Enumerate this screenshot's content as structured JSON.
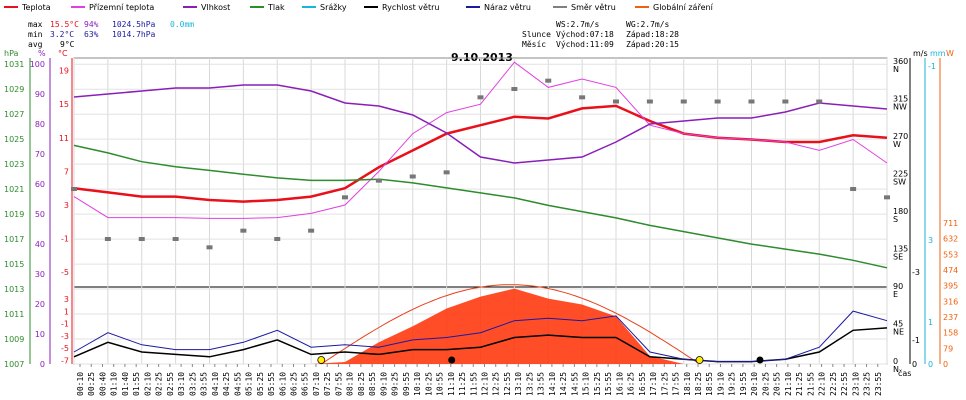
{
  "title": "9.10.2013",
  "legend": [
    {
      "label": "Teplota",
      "color": "#e8101a"
    },
    {
      "label": "Přízemní teplota",
      "color": "#e040e0"
    },
    {
      "label": "Vlhkost",
      "color": "#8a1fb8"
    },
    {
      "label": "Tlak",
      "color": "#2e8b2e"
    },
    {
      "label": "Srážky",
      "color": "#19b5d8"
    },
    {
      "label": "Rychlost větru",
      "color": "#000000"
    },
    {
      "label": "Náraz větru",
      "color": "#1a1aa0"
    },
    {
      "label": "Směr větru",
      "color": "#808080"
    },
    {
      "label": "Globální záření",
      "color": "#f06010"
    }
  ],
  "stats": {
    "max": {
      "label": "max",
      "temp": "15.5°C",
      "hum": "94%",
      "press": "1024.5hPa",
      "rain": "0.0mm"
    },
    "min": {
      "label": "min",
      "temp": "3.2°C",
      "hum": "63%",
      "press": "1014.7hPa"
    },
    "avg": {
      "label": "avg",
      "temp": "9°C"
    }
  },
  "wind_info": {
    "ws": "WS:2.7m/s",
    "wg": "WG:2.7m/s"
  },
  "sun": {
    "label": "Slunce",
    "rise": "Východ:07:18",
    "set": "Západ:18:28"
  },
  "moon": {
    "label": "Měsíc",
    "rise": "Východ:11:09",
    "set": "Západ:20:15"
  },
  "axes": {
    "hpa_unit": "hPa",
    "pct_unit": "%",
    "c_unit": "°C",
    "ms_unit": "m/s",
    "mm_unit": "mm",
    "w_unit": "W",
    "time_unit": "čas",
    "hpa_ticks": [
      "1031",
      "1029",
      "1027",
      "1025",
      "1023",
      "1021",
      "1019",
      "1017",
      "1015",
      "1013",
      "1011",
      "1009",
      "1007"
    ],
    "pct_ticks": [
      "100",
      "90",
      "80",
      "70",
      "60",
      "50",
      "40",
      "30",
      "20",
      "10",
      "0"
    ],
    "c_upper_ticks": [
      "19",
      "15",
      "11",
      "7",
      "3",
      "-1",
      "-5"
    ],
    "c_lower_ticks": [
      "3",
      "1",
      "-1",
      "-3",
      "-5",
      "-7"
    ],
    "dir_ticks": [
      {
        "deg": "360",
        "dir": "N"
      },
      {
        "deg": "315",
        "dir": "NW"
      },
      {
        "deg": "270",
        "dir": "W"
      },
      {
        "deg": "225",
        "dir": "SW"
      },
      {
        "deg": "180",
        "dir": "S"
      },
      {
        "deg": "135",
        "dir": "SE"
      },
      {
        "deg": "90",
        "dir": "E"
      },
      {
        "deg": "45",
        "dir": "NE"
      },
      {
        "deg": "0",
        "dir": "N"
      }
    ],
    "mm_ticks": [
      "-1",
      "3",
      "1",
      "0"
    ],
    "ms_ticks": [
      "-3",
      "-1",
      "0"
    ],
    "w_ticks": [
      "711",
      "632",
      "553",
      "474",
      "395",
      "316",
      "237",
      "158",
      "79",
      "0"
    ]
  },
  "chart_data": {
    "type": "line",
    "title": "9.10.2013",
    "xlabel": "čas",
    "x_ticks": [
      "00:10",
      "00:25",
      "00:40",
      "01:10",
      "01:40",
      "01:55",
      "02:10",
      "02:25",
      "02:55",
      "03:10",
      "03:25",
      "03:55",
      "04:10",
      "04:25",
      "04:55",
      "05:10",
      "05:25",
      "05:55",
      "06:10",
      "06:25",
      "06:55",
      "07:10",
      "07:25",
      "07:55",
      "08:10",
      "08:25",
      "08:55",
      "09:10",
      "09:25",
      "09:55",
      "10:10",
      "10:25",
      "10:55",
      "11:10",
      "11:25",
      "11:55",
      "12:10",
      "12:25",
      "12:55",
      "13:10",
      "13:25",
      "13:55",
      "14:10",
      "14:25",
      "14:55",
      "15:10",
      "15:25",
      "15:55",
      "16:10",
      "16:25",
      "16:55",
      "17:10",
      "17:25",
      "17:55",
      "18:10",
      "18:25",
      "18:55",
      "19:10",
      "19:25",
      "19:55",
      "20:10",
      "20:25",
      "20:55",
      "21:10",
      "21:25",
      "21:55",
      "22:10",
      "22:25",
      "22:55",
      "23:10",
      "23:25",
      "23:55"
    ],
    "hours": [
      0,
      1,
      2,
      3,
      4,
      5,
      6,
      7,
      8,
      9,
      10,
      11,
      12,
      13,
      14,
      15,
      16,
      17,
      18,
      19,
      20,
      21,
      22,
      23,
      24
    ],
    "series": [
      {
        "name": "Teplota",
        "unit": "°C",
        "values": [
          5,
          4.5,
          4,
          4,
          3.6,
          3.4,
          3.6,
          4,
          5,
          7.5,
          9.5,
          11.5,
          12.5,
          13.5,
          13.3,
          14.5,
          14.8,
          13,
          11.5,
          11,
          10.8,
          10.5,
          10.5,
          11.3,
          11
        ]
      },
      {
        "name": "Přízemní teplota",
        "unit": "°C",
        "values": [
          4,
          1.5,
          1.5,
          1.5,
          1.4,
          1.4,
          1.5,
          2,
          3,
          7,
          11.5,
          14,
          15,
          20,
          17,
          18,
          17,
          12.5,
          11.5,
          11,
          10.8,
          10.5,
          9.5,
          10.8,
          8
        ]
      },
      {
        "name": "Vlhkost",
        "unit": "%",
        "values": [
          89,
          90,
          91,
          92,
          92,
          93,
          93,
          91,
          87,
          86,
          83,
          77,
          69,
          67,
          68,
          69,
          74,
          80,
          81,
          82,
          82,
          84,
          87,
          86,
          85
        ]
      },
      {
        "name": "Tlak",
        "unit": "hPa",
        "values": [
          1024.5,
          1023.9,
          1023.2,
          1022.8,
          1022.5,
          1022.2,
          1021.9,
          1021.7,
          1021.7,
          1021.8,
          1021.5,
          1021.1,
          1020.7,
          1020.3,
          1019.7,
          1019.2,
          1018.7,
          1018.1,
          1017.6,
          1017.1,
          1016.6,
          1016.2,
          1015.8,
          1015.3,
          1014.7
        ]
      },
      {
        "name": "Rychlost větru",
        "unit": "m/s",
        "values": [
          0.3,
          0.9,
          0.5,
          0.4,
          0.3,
          0.6,
          1.0,
          0.4,
          0.5,
          0.4,
          0.6,
          0.6,
          0.7,
          1.1,
          1.2,
          1.1,
          1.1,
          0.3,
          0.2,
          0.1,
          0.1,
          0.2,
          0.5,
          1.4,
          1.5
        ]
      },
      {
        "name": "Náraz větru",
        "unit": "m/s",
        "values": [
          0.5,
          1.3,
          0.8,
          0.6,
          0.6,
          0.9,
          1.4,
          0.7,
          0.8,
          0.7,
          1.0,
          1.1,
          1.3,
          1.8,
          1.9,
          1.8,
          2.0,
          0.5,
          0.2,
          0.1,
          0.1,
          0.2,
          0.7,
          2.2,
          1.8
        ]
      },
      {
        "name": "Směr větru",
        "unit": "°",
        "values": [
          210,
          150,
          150,
          150,
          140,
          160,
          150,
          160,
          200,
          220,
          225,
          230,
          320,
          330,
          340,
          320,
          315,
          315,
          315,
          315,
          315,
          315,
          315,
          210,
          200
        ]
      },
      {
        "name": "Globální záření",
        "unit": "W/m²",
        "values": [
          0,
          0,
          0,
          0,
          0,
          0,
          0,
          0,
          10,
          110,
          190,
          280,
          340,
          380,
          330,
          300,
          240,
          40,
          0,
          0,
          0,
          0,
          0,
          0,
          0
        ]
      }
    ],
    "grid": true,
    "ylim_hpa": [
      1007,
      1031
    ],
    "ylim_pct": [
      0,
      100
    ],
    "ylim_c": [
      -7,
      19
    ],
    "ylim_w": [
      0,
      711
    ]
  }
}
